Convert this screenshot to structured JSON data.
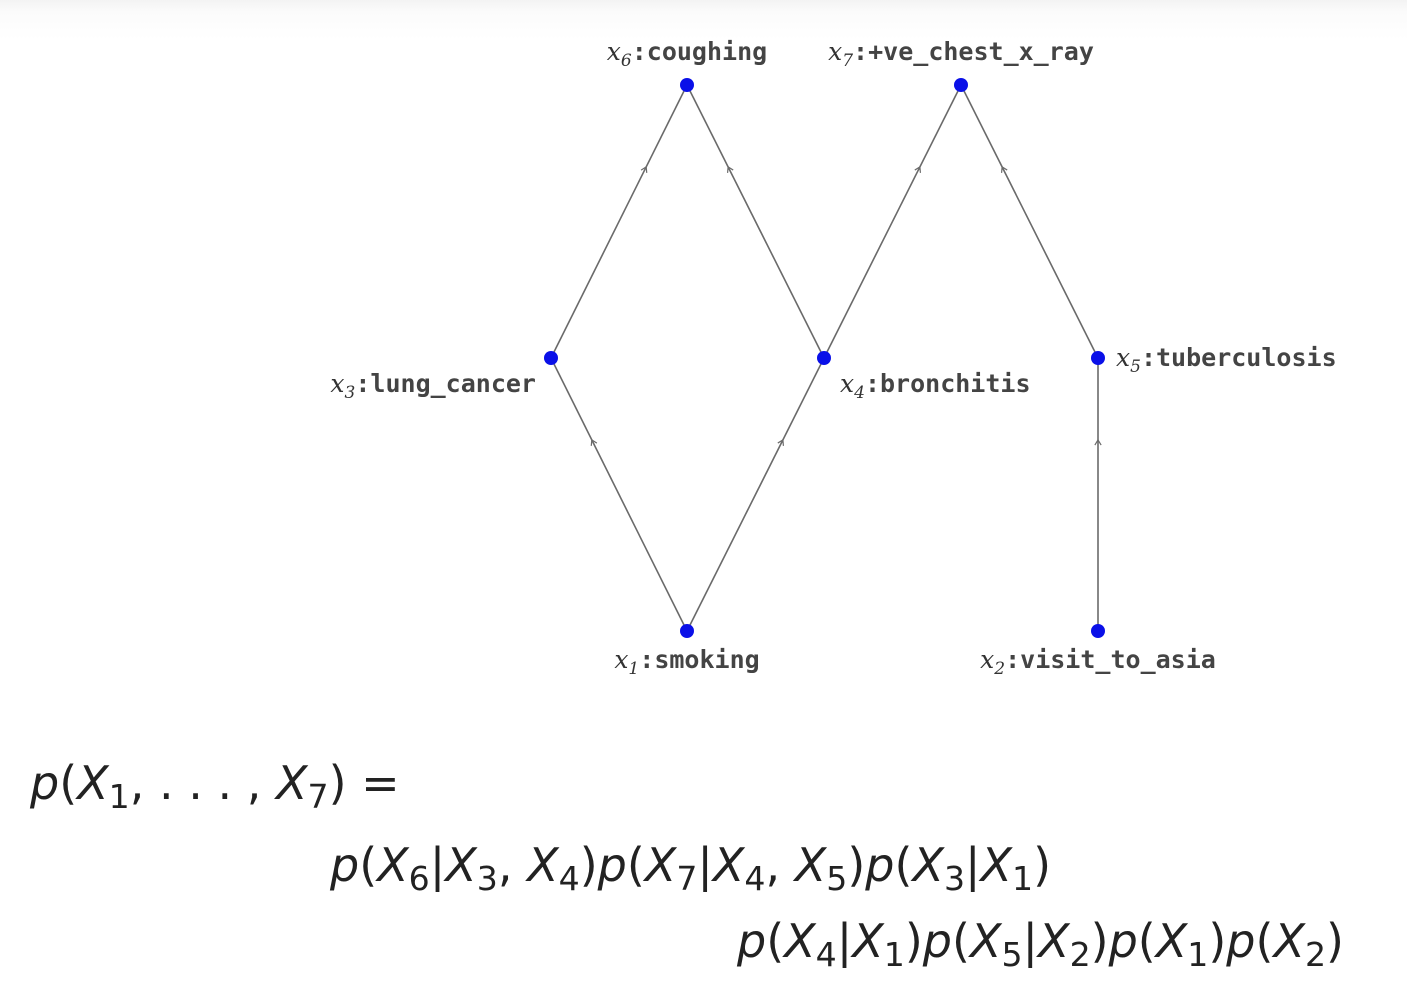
{
  "graph": {
    "nodes": [
      {
        "id": "x6",
        "var": "x",
        "sub": "6",
        "name": "coughing"
      },
      {
        "id": "x7",
        "var": "x",
        "sub": "7",
        "name": "+ve_chest_x_ray"
      },
      {
        "id": "x3",
        "var": "x",
        "sub": "3",
        "name": "lung_cancer"
      },
      {
        "id": "x4",
        "var": "x",
        "sub": "4",
        "name": "bronchitis"
      },
      {
        "id": "x5",
        "var": "x",
        "sub": "5",
        "name": "tuberculosis"
      },
      {
        "id": "x1",
        "var": "x",
        "sub": "1",
        "name": "smoking"
      },
      {
        "id": "x2",
        "var": "x",
        "sub": "2",
        "name": "visit_to_asia"
      }
    ],
    "edges": [
      {
        "from": "x1",
        "to": "x3"
      },
      {
        "from": "x1",
        "to": "x4"
      },
      {
        "from": "x3",
        "to": "x6"
      },
      {
        "from": "x4",
        "to": "x6"
      },
      {
        "from": "x4",
        "to": "x7"
      },
      {
        "from": "x5",
        "to": "x7"
      },
      {
        "from": "x2",
        "to": "x5"
      }
    ],
    "node_color": "#0a10e8",
    "edge_color": "#6a6a6a"
  },
  "formula": {
    "line1": "p(X1, . . . , X7) =",
    "line2": "p(X6|X3, X4)p(X7|X4, X5)p(X3|X1)",
    "line3": "p(X4|X1)p(X5|X2)p(X1)p(X2)"
  }
}
